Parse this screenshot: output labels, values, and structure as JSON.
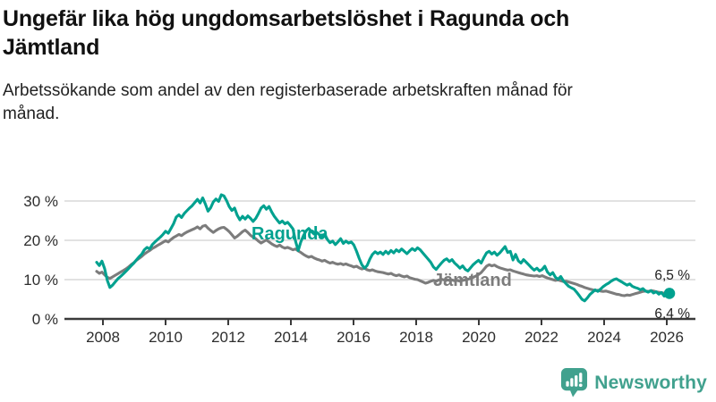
{
  "header": {
    "title": "Ungefär lika hög ungdomsarbetslöshet i Ragunda och Jämtland",
    "subtitle": "Arbetssökande som andel av den registerbaserade arbetskraften månad för månad."
  },
  "footer": {
    "brand": "Newsworthy",
    "brand_color": "#41a18e",
    "logo_icon": "speech-bubble-bar-chart-icon"
  },
  "chart_data": {
    "type": "line",
    "title": "Ungefär lika hög ungdomsarbetslöshet i Ragunda och Jämtland",
    "subtitle": "Arbetssökande som andel av den registerbaserade arbetskraften månad för månad.",
    "x_unit": "month",
    "x_start": "2008-01",
    "x_end": "2026-01",
    "x_tick_labels": [
      "2008",
      "2010",
      "2012",
      "2014",
      "2016",
      "2018",
      "2020",
      "2022",
      "2024",
      "2026"
    ],
    "y_tick_values": [
      0,
      10,
      20,
      30
    ],
    "y_tick_labels": [
      "0 %",
      "10 %",
      "20 %",
      "30 %"
    ],
    "ylim": [
      0,
      33.5
    ],
    "grid": "horizontal",
    "legend_position": "inline-labels",
    "colors": {
      "grid": "#d8d8d8",
      "axis": "#3a3a3a",
      "tick_text": "#2d2d2d"
    },
    "series": [
      {
        "name": "Ragunda",
        "color": "#00a18f",
        "end_label": "6,5 %",
        "end_dot": true,
        "values": [
          14.4,
          13.6,
          14.7,
          12.8,
          9.8,
          8.0,
          8.6,
          9.4,
          10.2,
          10.8,
          11.4,
          12.1,
          12.8,
          13.5,
          14.2,
          15.0,
          15.8,
          16.5,
          17.6,
          18.2,
          17.8,
          18.9,
          19.6,
          20.2,
          20.8,
          21.5,
          22.3,
          21.8,
          23.0,
          24.2,
          25.9,
          26.5,
          25.8,
          26.8,
          27.5,
          28.2,
          28.8,
          29.6,
          30.4,
          29.5,
          30.8,
          29.2,
          27.4,
          28.3,
          29.8,
          30.5,
          29.9,
          31.6,
          31.3,
          30.1,
          28.6,
          27.6,
          28.2,
          26.4,
          25.2,
          26.1,
          25.4,
          26.2,
          25.6,
          24.8,
          25.6,
          26.8,
          28.2,
          28.8,
          27.9,
          28.6,
          27.2,
          26.1,
          25.2,
          24.4,
          24.9,
          24.2,
          24.6,
          23.8,
          22.9,
          19.8,
          17.4,
          19.6,
          21.2,
          22.4,
          23.0,
          22.2,
          21.6,
          22.0,
          21.4,
          20.8,
          21.6,
          20.2,
          19.4,
          19.8,
          18.9,
          19.6,
          20.4,
          19.2,
          19.8,
          19.3,
          19.6,
          18.8,
          17.2,
          15.4,
          13.8,
          12.9,
          13.6,
          15.2,
          16.4,
          17.1,
          16.6,
          17.0,
          16.4,
          17.2,
          16.6,
          17.4,
          16.8,
          17.6,
          17.1,
          17.8,
          17.2,
          16.6,
          17.3,
          17.9,
          17.4,
          18.1,
          17.6,
          16.8,
          16.0,
          15.2,
          14.4,
          13.2,
          12.6,
          13.4,
          14.2,
          14.9,
          15.3,
          14.6,
          15.1,
          14.2,
          13.6,
          12.9,
          13.5,
          12.6,
          12.2,
          13.0,
          13.8,
          14.4,
          14.9,
          14.2,
          15.6,
          16.8,
          17.2,
          16.5,
          17.0,
          16.2,
          16.8,
          17.6,
          18.4,
          16.9,
          17.2,
          15.0,
          16.4,
          14.8,
          14.2,
          15.1,
          14.4,
          13.7,
          13.0,
          12.4,
          12.9,
          12.2,
          12.6,
          13.4,
          11.9,
          11.2,
          11.8,
          10.6,
          10.1,
          10.8,
          9.7,
          9.0,
          8.3,
          7.9,
          7.6,
          6.8,
          5.9,
          5.0,
          4.6,
          5.3,
          6.2,
          6.8,
          7.4,
          7.0,
          7.6,
          8.2,
          8.7,
          9.1,
          9.6,
          10.0,
          10.2,
          9.8,
          9.4,
          9.0,
          8.6,
          8.9,
          8.3,
          8.0,
          7.8,
          7.4,
          7.7,
          7.1,
          6.8,
          7.2,
          6.6,
          6.9,
          6.3,
          6.7,
          5.8,
          6.1,
          6.5
        ]
      },
      {
        "name": "Jämtland",
        "color": "#7c7c7c",
        "end_label": "6,4 %",
        "end_dot": false,
        "values": [
          12.1,
          11.6,
          11.9,
          11.2,
          10.6,
          10.3,
          10.7,
          11.1,
          11.5,
          11.9,
          12.3,
          12.7,
          13.2,
          13.8,
          14.3,
          14.9,
          15.4,
          15.9,
          16.5,
          17.0,
          17.4,
          17.9,
          18.3,
          18.7,
          19.1,
          19.5,
          19.9,
          19.6,
          20.2,
          20.7,
          21.1,
          21.5,
          21.2,
          21.7,
          22.1,
          22.4,
          22.7,
          23.0,
          23.4,
          22.9,
          23.6,
          23.8,
          23.1,
          22.5,
          22.0,
          22.5,
          22.9,
          23.2,
          23.3,
          22.8,
          22.2,
          21.4,
          20.6,
          21.0,
          21.6,
          22.2,
          22.6,
          22.0,
          21.3,
          20.8,
          20.4,
          19.8,
          19.3,
          19.7,
          20.1,
          19.6,
          19.1,
          18.7,
          18.4,
          18.8,
          18.3,
          18.0,
          18.2,
          17.9,
          17.6,
          17.8,
          17.3,
          16.9,
          16.4,
          16.0,
          15.7,
          15.9,
          15.5,
          15.2,
          15.0,
          14.7,
          14.9,
          14.5,
          14.2,
          14.4,
          14.1,
          13.9,
          14.1,
          13.8,
          14.0,
          13.7,
          13.5,
          13.2,
          13.4,
          13.0,
          12.7,
          12.9,
          12.5,
          12.3,
          12.5,
          12.2,
          12.0,
          11.9,
          11.8,
          11.6,
          11.4,
          11.6,
          11.2,
          11.0,
          11.2,
          10.9,
          10.7,
          10.9,
          10.5,
          10.3,
          10.1,
          10.0,
          9.7,
          9.4,
          9.1,
          9.3,
          9.6,
          9.8,
          9.6,
          9.9,
          10.1,
          9.9,
          10.0,
          9.8,
          9.9,
          9.7,
          9.8,
          9.6,
          9.8,
          9.9,
          10.1,
          10.3,
          10.6,
          10.9,
          11.3,
          11.8,
          12.6,
          13.4,
          13.8,
          13.5,
          13.7,
          13.3,
          13.0,
          12.8,
          12.6,
          12.4,
          12.5,
          12.2,
          12.0,
          11.8,
          11.6,
          11.4,
          11.2,
          11.1,
          11.0,
          10.9,
          11.0,
          10.8,
          11.0,
          10.7,
          10.4,
          10.2,
          10.0,
          9.8,
          9.9,
          9.7,
          9.5,
          9.6,
          9.4,
          9.2,
          9.0,
          8.8,
          8.5,
          8.3,
          8.0,
          7.8,
          7.6,
          7.4,
          7.2,
          7.3,
          7.1,
          7.0,
          7.1,
          6.9,
          6.7,
          6.5,
          6.3,
          6.2,
          6.0,
          5.9,
          6.1,
          6.0,
          6.2,
          6.4,
          6.6,
          6.8,
          7.0,
          7.1,
          7.0,
          7.2,
          7.1,
          6.9,
          6.8,
          6.7,
          6.5,
          6.4,
          6.4
        ]
      }
    ]
  }
}
